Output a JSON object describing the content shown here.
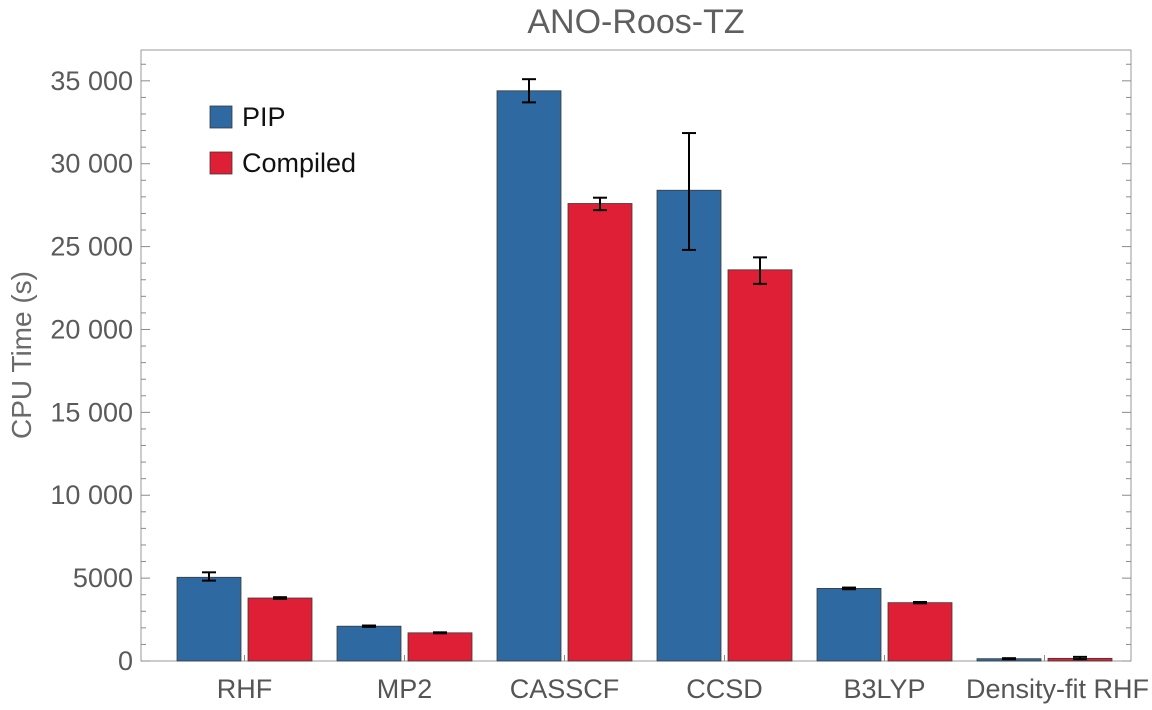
{
  "chart_data": {
    "type": "bar",
    "title": "ANO-Roos-TZ",
    "xlabel": "",
    "ylabel": "CPU Time (s)",
    "ylim": [
      0,
      37000
    ],
    "yticks": [
      0,
      5000,
      10000,
      15000,
      20000,
      25000,
      30000,
      35000
    ],
    "ytick_labels": [
      "0",
      "5000",
      "10 000",
      "15 000",
      "20 000",
      "25 000",
      "30 000",
      "35 000"
    ],
    "categories": [
      "RHF",
      "MP2",
      "CASSCF",
      "CCSD",
      "B3LYP",
      "Density-fit RHF"
    ],
    "series": [
      {
        "name": "PIP",
        "color": "#2e6aa1",
        "values": [
          5050,
          2100,
          34400,
          28400,
          4380,
          140
        ],
        "err_low": [
          4850,
          2060,
          33700,
          24800,
          4330,
          110
        ],
        "err_high": [
          5350,
          2140,
          35100,
          31850,
          4430,
          170
        ]
      },
      {
        "name": "Compiled",
        "color": "#de1f35",
        "values": [
          3800,
          1700,
          27600,
          23600,
          3520,
          160
        ],
        "err_low": [
          3750,
          1670,
          27200,
          22750,
          3480,
          110
        ],
        "err_high": [
          3850,
          1730,
          27950,
          24350,
          3560,
          250
        ]
      }
    ],
    "legend": {
      "placement": "top-left"
    },
    "grid": false
  }
}
